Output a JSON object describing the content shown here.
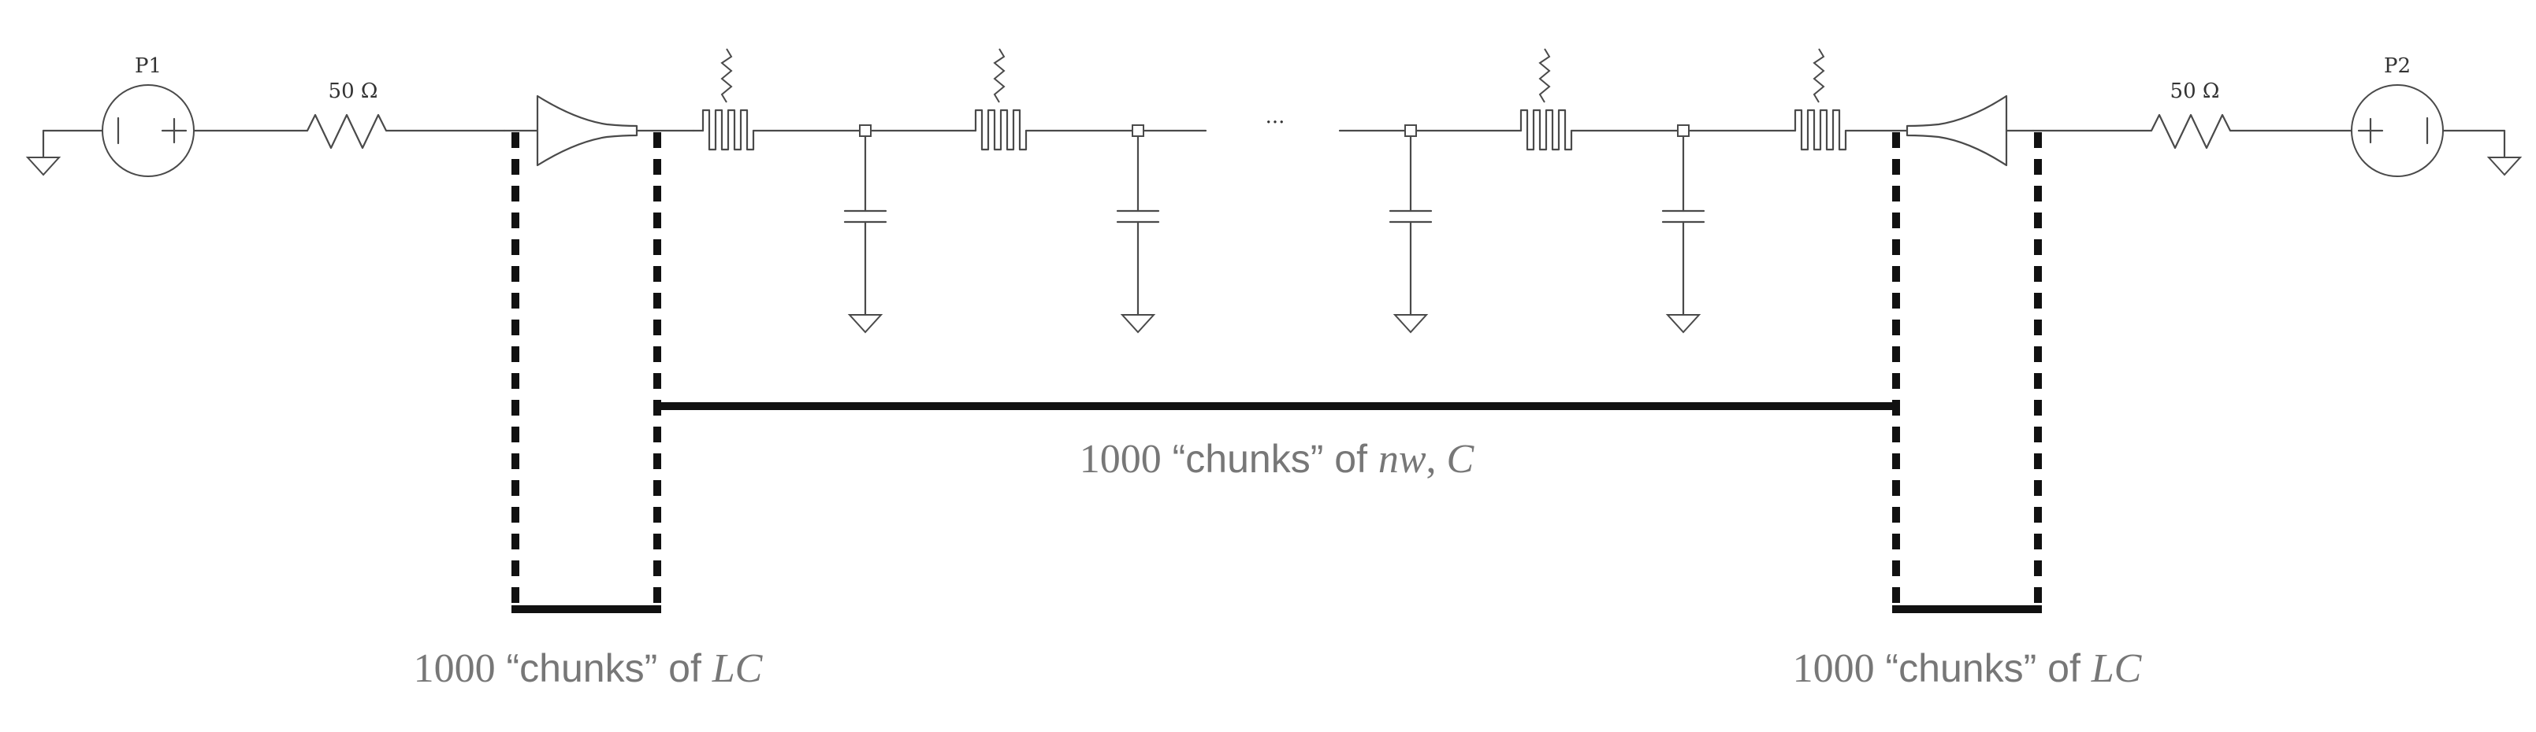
{
  "ports": [
    {
      "label": "P1"
    },
    {
      "label": "P2"
    }
  ],
  "resistors": [
    {
      "label": "50 Ω"
    },
    {
      "label": "50 Ω"
    }
  ],
  "ellipsis": "···",
  "brackets": {
    "left": {
      "num": "1000",
      "text": " “chunks” of ",
      "math": "LC"
    },
    "middle": {
      "num": "1000",
      "text": " “chunks” of ",
      "math": "nw",
      "sep": ", ",
      "math2": "C"
    },
    "right": {
      "num": "1000",
      "text": " “chunks” of ",
      "math": "LC"
    }
  }
}
